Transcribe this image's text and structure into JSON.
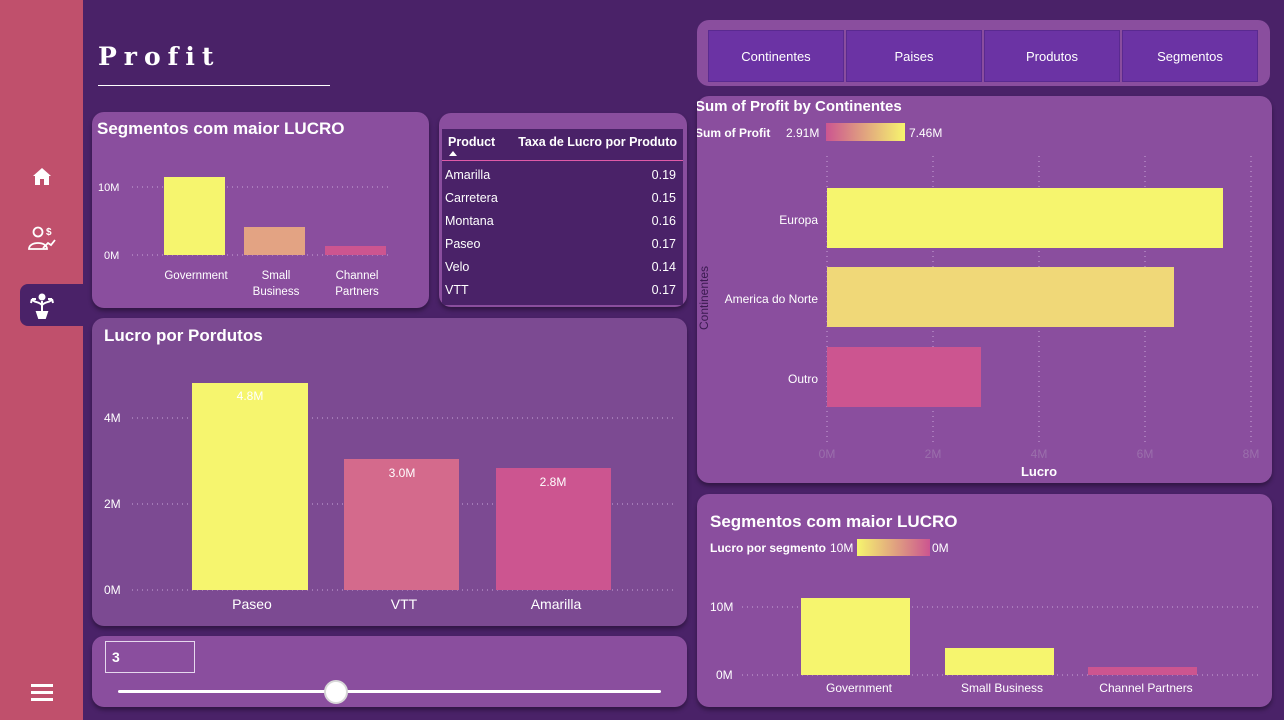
{
  "page": {
    "title": "Profit"
  },
  "sidebar": {
    "items": [
      {
        "icon": "home-icon"
      },
      {
        "icon": "user-money-icon"
      },
      {
        "icon": "plant-growth-icon",
        "active": true
      },
      {
        "icon": "hamburger-menu-icon"
      }
    ]
  },
  "nav_buttons": [
    "Continentes",
    "Paises",
    "Produtos",
    "Segmentos"
  ],
  "segment_chart": {
    "title": "Segmentos com maior LUCRO",
    "ytick_top": "10M",
    "ytick_bottom": "0M",
    "cat1": "Government",
    "cat2_line1": "Small",
    "cat2_line2": "Business",
    "cat3_line1": "Channel",
    "cat3_line2": "Partners"
  },
  "product_table": {
    "col1": "Product",
    "col2": "Taxa de Lucro por Produto",
    "rows": [
      {
        "name": "Amarilla",
        "value": "0.19"
      },
      {
        "name": "Carretera",
        "value": "0.15"
      },
      {
        "name": "Montana",
        "value": "0.16"
      },
      {
        "name": "Paseo",
        "value": "0.17"
      },
      {
        "name": "Velo",
        "value": "0.14"
      },
      {
        "name": "VTT",
        "value": "0.17"
      }
    ]
  },
  "products_chart": {
    "title": "Lucro por Pordutos",
    "yticks": [
      "4M",
      "2M",
      "0M"
    ],
    "labels": [
      "4.8M",
      "3.0M",
      "2.8M"
    ],
    "cats": [
      "Paseo",
      "VTT",
      "Amarilla"
    ]
  },
  "continents_chart": {
    "title": "Sum of Profit by Continentes",
    "legend_label": "Sum of Profit",
    "legend_min": "2.91M",
    "legend_max": "7.46M",
    "cats": [
      "Europa",
      "America do Norte",
      "Outro"
    ],
    "xticks": [
      "0M",
      "2M",
      "4M",
      "6M",
      "8M"
    ],
    "xlabel": "Lucro",
    "ylabel": "Continentes"
  },
  "segments_chart2": {
    "title": "Segmentos com maior LUCRO",
    "legend_label": "Lucro por segmento",
    "legend_left": "10M",
    "legend_right": "0M",
    "ytick_top": "10M",
    "ytick_bottom": "0M",
    "cats": [
      "Government",
      "Small Business",
      "Channel Partners"
    ]
  },
  "slider": {
    "value": "3",
    "fraction": 0.4
  },
  "colors": {
    "background": "#4a2268",
    "card": "#8a4e9e",
    "sidebar": "#c0506c",
    "yellow": "#f6f56e",
    "pink": "#cc5590"
  },
  "chart_data": [
    {
      "type": "bar",
      "title": "Segmentos com maior LUCRO",
      "categories": [
        "Government",
        "Small Business",
        "Channel Partners"
      ],
      "values": [
        11.4,
        4.1,
        1.3
      ],
      "unit": "M"
    },
    {
      "type": "bar",
      "title": "Lucro por Pordutos",
      "categories": [
        "Paseo",
        "VTT",
        "Amarilla"
      ],
      "values": [
        4.8,
        3.0,
        2.8
      ],
      "unit": "M"
    },
    {
      "type": "bar",
      "orientation": "horizontal",
      "title": "Sum of Profit by Continentes",
      "categories": [
        "Europa",
        "America do Norte",
        "Outro"
      ],
      "values": [
        7.46,
        6.55,
        2.91
      ],
      "xlabel": "Lucro",
      "ylabel": "Continentes",
      "xlim": [
        0,
        8
      ],
      "unit": "M"
    },
    {
      "type": "bar",
      "title": "Segmentos com maior LUCRO",
      "categories": [
        "Government",
        "Small Business",
        "Channel Partners"
      ],
      "values": [
        11.4,
        4.1,
        1.3
      ],
      "unit": "M"
    }
  ]
}
